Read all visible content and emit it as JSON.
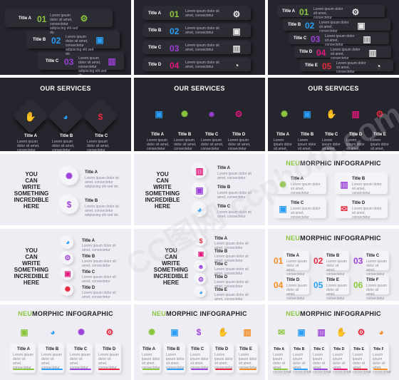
{
  "common": {
    "desc": "Lorem ipsum dolor sit amet, consectetur adipiscing elit sed do.",
    "desc_short": "Lorem ipsum dolor sit amet, consectetur",
    "services_title": "OUR SERVICES",
    "neu": "NEU",
    "morphic": "MORPHIC INFOGRAPHIC",
    "you_can": [
      "YOU",
      "CAN",
      "WRITE",
      "SOMETHING",
      "INCREDIBLE",
      "HERE"
    ]
  },
  "colors": {
    "green": "#8cc63f",
    "blue": "#2a9df4",
    "purple": "#9b40d8",
    "pink": "#e3177c",
    "red": "#e5283b",
    "orange": "#f28c1c",
    "dark_bg": "#25252d",
    "light_bg": "#ededf3"
  },
  "titles": {
    "a": "Title A",
    "b": "Title B",
    "c": "Title C",
    "d": "Title D",
    "e": "Title E",
    "f": "Title F"
  },
  "numbers": {
    "n1": "01",
    "n2": "02",
    "n3": "03",
    "n4": "04",
    "n5": "05",
    "n6": "06"
  },
  "watermark": "CC图网 ccphoto.com"
}
